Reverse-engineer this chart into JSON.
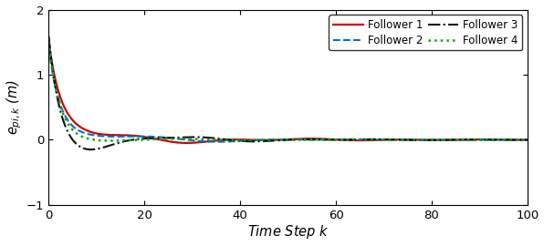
{
  "title": "",
  "xlabel": "Time Step $k$",
  "ylabel": "$e_{pi,k}$ (m)",
  "xlim": [
    0,
    100
  ],
  "ylim": [
    -1,
    2
  ],
  "yticks": [
    -1,
    0,
    1,
    2
  ],
  "xticks": [
    0,
    20,
    40,
    60,
    80,
    100
  ],
  "line_styles": [
    {
      "color": "#d40000",
      "linestyle": "-",
      "linewidth": 1.6,
      "label": "Follower 1"
    },
    {
      "color": "#0070c8",
      "linestyle": "--",
      "linewidth": 1.5,
      "label": "Follower 2"
    },
    {
      "color": "#111111",
      "linestyle": "-.",
      "linewidth": 1.5,
      "label": "Follower 3"
    },
    {
      "color": "#00aa00",
      "linestyle": ":",
      "linewidth": 1.8,
      "label": "Follower 4"
    }
  ],
  "background_color": "#ffffff",
  "figsize": [
    5.96,
    2.7
  ],
  "dpi": 100
}
